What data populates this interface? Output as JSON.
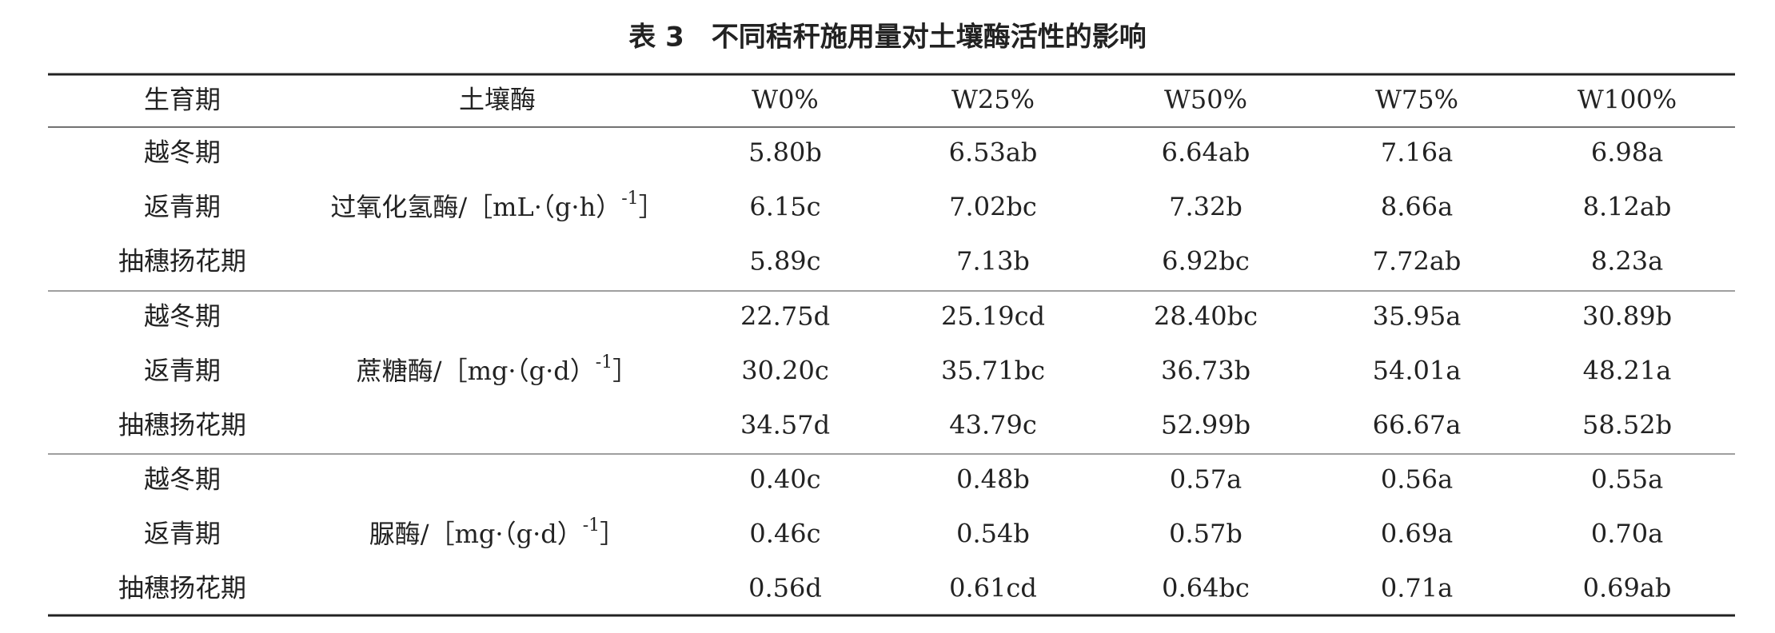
{
  "title": "表 3　不同秸秆施用量对土壤酶活性的影响",
  "table": {
    "header": [
      "生育期",
      "土壤酶",
      "W0%",
      "W25%",
      "W50%",
      "W75%",
      "W100%"
    ],
    "groups": [
      {
        "enzyme": {
          "text": "过氧化氢酶/［mL·（g·h）",
          "sup": "-1",
          "close": "］"
        },
        "rows": [
          [
            "越冬期",
            "5.80b",
            "6.53ab",
            "6.64ab",
            "7.16a",
            "6.98a"
          ],
          [
            "返青期",
            "6.15c",
            "7.02bc",
            "7.32b",
            "8.66a",
            "8.12ab"
          ],
          [
            "抽穗扬花期",
            "5.89c",
            "7.13b",
            "6.92bc",
            "7.72ab",
            "8.23a"
          ]
        ]
      },
      {
        "enzyme": {
          "text": "蔗糖酶/［mg·（g·d）",
          "sup": "-1",
          "close": "］"
        },
        "rows": [
          [
            "越冬期",
            "22.75d",
            "25.19cd",
            "28.40bc",
            "35.95a",
            "30.89b"
          ],
          [
            "返青期",
            "30.20c",
            "35.71bc",
            "36.73b",
            "54.01a",
            "48.21a"
          ],
          [
            "抽穗扬花期",
            "34.57d",
            "43.79c",
            "52.99b",
            "66.67a",
            "58.52b"
          ]
        ]
      },
      {
        "enzyme": {
          "text": "脲酶/［mg·（g·d）",
          "sup": "-1",
          "close": "］"
        },
        "rows": [
          [
            "越冬期",
            "0.40c",
            "0.48b",
            "0.57a",
            "0.56a",
            "0.55a"
          ],
          [
            "返青期",
            "0.46c",
            "0.54b",
            "0.57b",
            "0.69a",
            "0.70a"
          ],
          [
            "抽穗扬花期",
            "0.56d",
            "0.61cd",
            "0.64bc",
            "0.71a",
            "0.69ab"
          ]
        ]
      }
    ]
  }
}
